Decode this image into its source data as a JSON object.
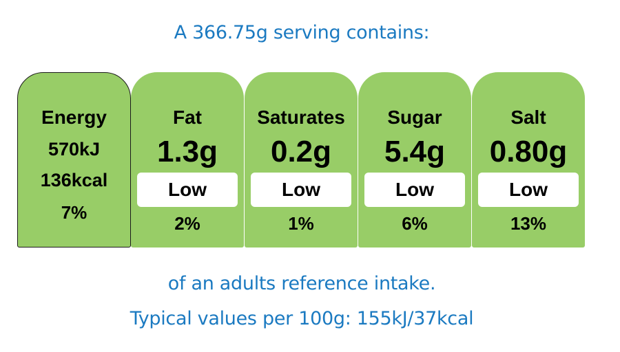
{
  "header": {
    "serving_text": "A 366.75g serving contains:"
  },
  "energy": {
    "label": "Energy",
    "kj": "570kJ",
    "kcal": "136kcal",
    "percent": "7%"
  },
  "nutrients": [
    {
      "label": "Fat",
      "amount": "1.3g",
      "level": "Low",
      "percent": "2%"
    },
    {
      "label": "Saturates",
      "amount": "0.2g",
      "level": "Low",
      "percent": "1%"
    },
    {
      "label": "Sugar",
      "amount": "5.4g",
      "level": "Low",
      "percent": "6%"
    },
    {
      "label": "Salt",
      "amount": "0.80g",
      "level": "Low",
      "percent": "13%"
    }
  ],
  "footer": {
    "reference_text": "of an adults reference intake.",
    "typical_values_text": "Typical values per 100g: 155kJ/37kcal"
  },
  "colors": {
    "card_green": "#98cd67",
    "caption_blue": "#1b7ac1",
    "level_box": "#ffffff"
  }
}
